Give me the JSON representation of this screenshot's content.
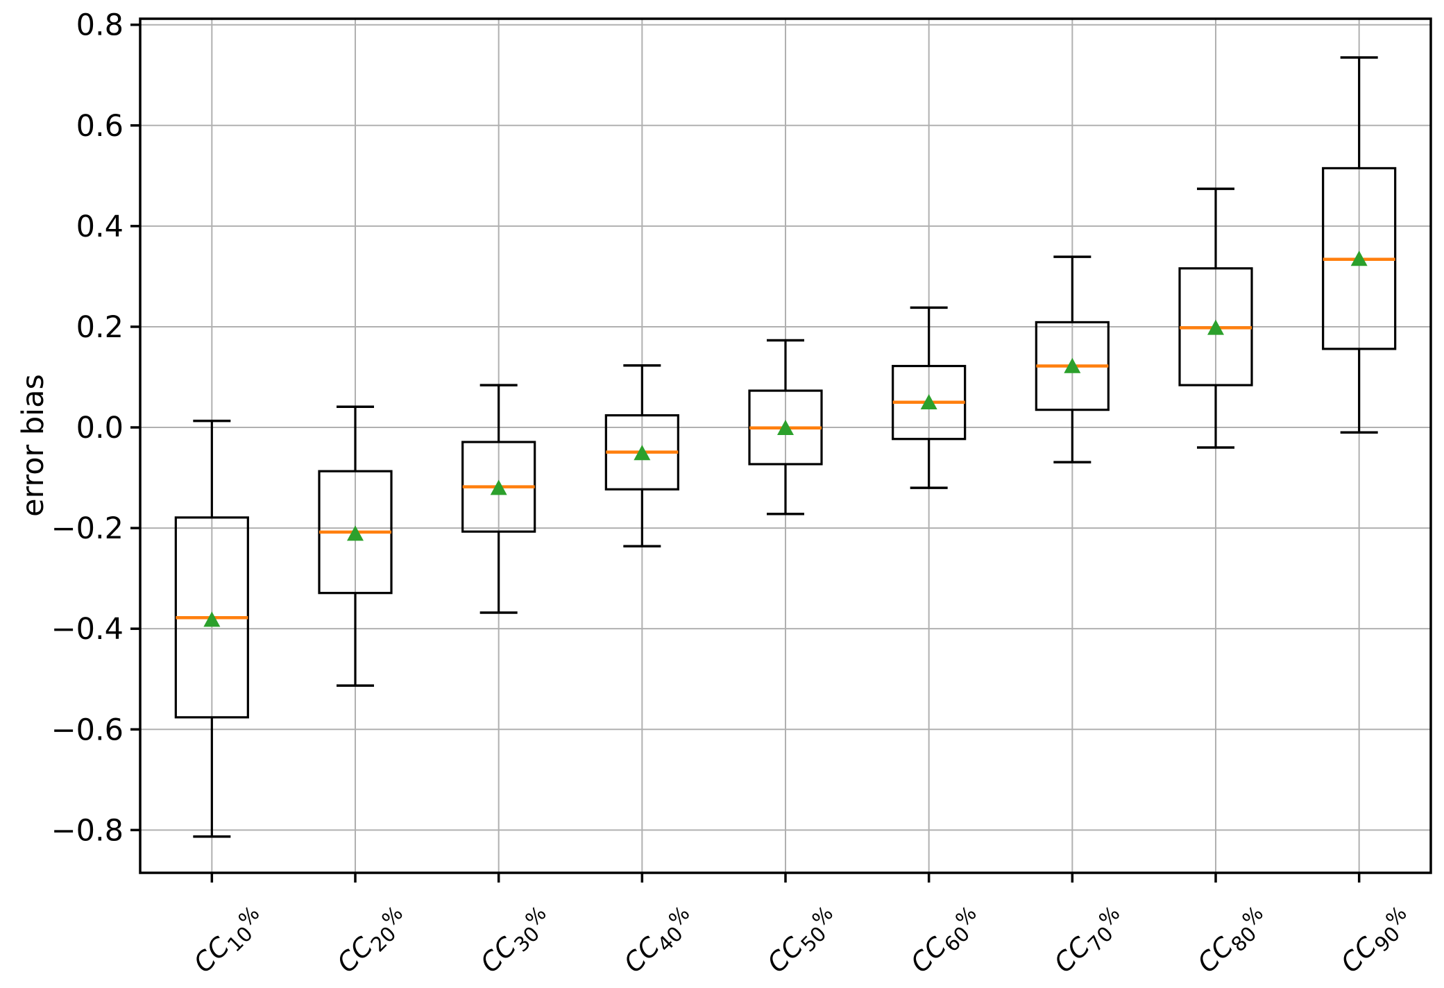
{
  "figure": {
    "background": "#ffffff"
  },
  "chart_data": {
    "type": "box",
    "title": "",
    "xlabel": "",
    "ylabel": "error bias",
    "ylim": [
      -0.885,
      0.812
    ],
    "yticks": [
      0.8,
      0.6,
      0.4,
      0.2,
      0.0,
      -0.2,
      -0.4,
      -0.6,
      -0.8
    ],
    "ytick_labels": [
      "0.8",
      "0.6",
      "0.4",
      "0.2",
      "0.0",
      "−0.2",
      "−0.4",
      "−0.6",
      "−0.8"
    ],
    "grid": true,
    "legend": false,
    "categories": [
      {
        "label": "CC10%",
        "prefix": "CC",
        "subscript": "10",
        "suffix": "%"
      },
      {
        "label": "CC20%",
        "prefix": "CC",
        "subscript": "20",
        "suffix": "%"
      },
      {
        "label": "CC30%",
        "prefix": "CC",
        "subscript": "30",
        "suffix": "%"
      },
      {
        "label": "CC40%",
        "prefix": "CC",
        "subscript": "40",
        "suffix": "%"
      },
      {
        "label": "CC50%",
        "prefix": "CC",
        "subscript": "50",
        "suffix": "%"
      },
      {
        "label": "CC60%",
        "prefix": "CC",
        "subscript": "60",
        "suffix": "%"
      },
      {
        "label": "CC70%",
        "prefix": "CC",
        "subscript": "70",
        "suffix": "%"
      },
      {
        "label": "CC80%",
        "prefix": "CC",
        "subscript": "80",
        "suffix": "%"
      },
      {
        "label": "CC90%",
        "prefix": "CC",
        "subscript": "90",
        "suffix": "%"
      }
    ],
    "boxes": [
      {
        "category": "CC10%",
        "whisker_low": -0.813,
        "q1": -0.576,
        "median": -0.378,
        "mean": -0.381,
        "q3": -0.179,
        "whisker_high": 0.013
      },
      {
        "category": "CC20%",
        "whisker_low": -0.513,
        "q1": -0.329,
        "median": -0.208,
        "mean": -0.21,
        "q3": -0.087,
        "whisker_high": 0.041
      },
      {
        "category": "CC30%",
        "whisker_low": -0.368,
        "q1": -0.207,
        "median": -0.118,
        "mean": -0.119,
        "q3": -0.029,
        "whisker_high": 0.084
      },
      {
        "category": "CC40%",
        "whisker_low": -0.236,
        "q1": -0.123,
        "median": -0.049,
        "mean": -0.05,
        "q3": 0.024,
        "whisker_high": 0.123
      },
      {
        "category": "CC50%",
        "whisker_low": -0.172,
        "q1": -0.073,
        "median": -0.001,
        "mean": 0.0,
        "q3": 0.073,
        "whisker_high": 0.173
      },
      {
        "category": "CC60%",
        "whisker_low": -0.12,
        "q1": -0.023,
        "median": 0.05,
        "mean": 0.051,
        "q3": 0.122,
        "whisker_high": 0.238
      },
      {
        "category": "CC70%",
        "whisker_low": -0.069,
        "q1": 0.035,
        "median": 0.122,
        "mean": 0.123,
        "q3": 0.209,
        "whisker_high": 0.339
      },
      {
        "category": "CC80%",
        "whisker_low": -0.04,
        "q1": 0.084,
        "median": 0.198,
        "mean": 0.199,
        "q3": 0.316,
        "whisker_high": 0.474
      },
      {
        "category": "CC90%",
        "whisker_low": -0.01,
        "q1": 0.156,
        "median": 0.334,
        "mean": 0.336,
        "q3": 0.515,
        "whisker_high": 0.735
      }
    ],
    "colors": {
      "box_edge": "#000000",
      "whisker": "#000000",
      "cap": "#000000",
      "median": "#ff7f0e",
      "mean_marker": "#2ca02c",
      "grid": "#b0b0b0",
      "spine": "#000000",
      "tick_label": "#000000",
      "background": "#ffffff"
    },
    "mean_marker_shape": "triangle-up"
  }
}
